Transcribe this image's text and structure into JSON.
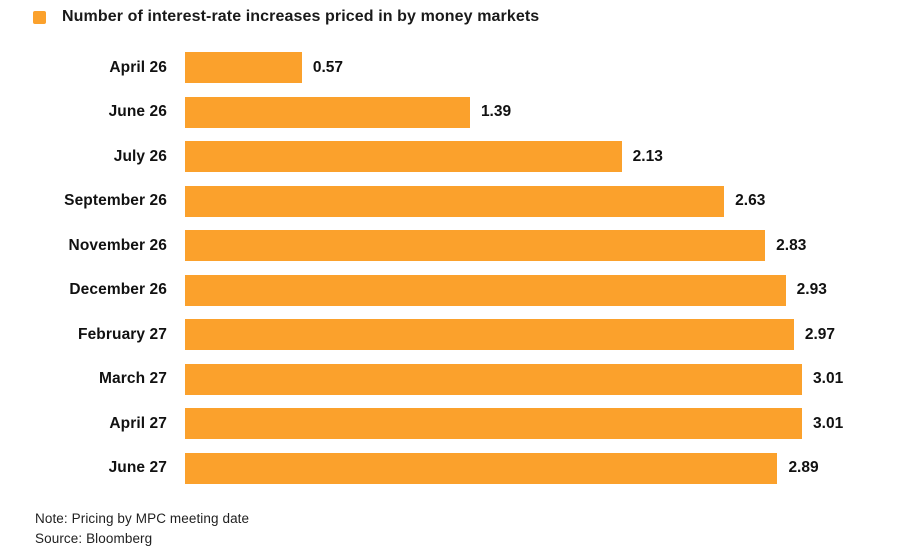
{
  "legend": {
    "label": "Number of interest-rate increases priced in by money markets",
    "swatch_color": "#FBA12C"
  },
  "chart_data": {
    "type": "bar",
    "orientation": "horizontal",
    "title": "Number of interest-rate increases priced in by money markets",
    "categories": [
      "April 26",
      "June 26",
      "July 26",
      "September 26",
      "November 26",
      "December 26",
      "February 27",
      "March 27",
      "April 27",
      "June 27"
    ],
    "values": [
      0.57,
      1.39,
      2.13,
      2.63,
      2.83,
      2.93,
      2.97,
      3.01,
      3.01,
      2.89
    ],
    "value_labels": [
      "0.57",
      "1.39",
      "2.13",
      "2.63",
      "2.83",
      "2.93",
      "2.97",
      "3.01",
      "3.01",
      "2.89"
    ],
    "xlabel": "",
    "ylabel": "",
    "xlim": [
      0,
      3.2
    ],
    "bar_color": "#FBA12C",
    "grid": false,
    "axis_lines": false,
    "legend_position": "top-left"
  },
  "footer": {
    "note": "Note: Pricing by MPC meeting date",
    "source": "Source: Bloomberg"
  }
}
